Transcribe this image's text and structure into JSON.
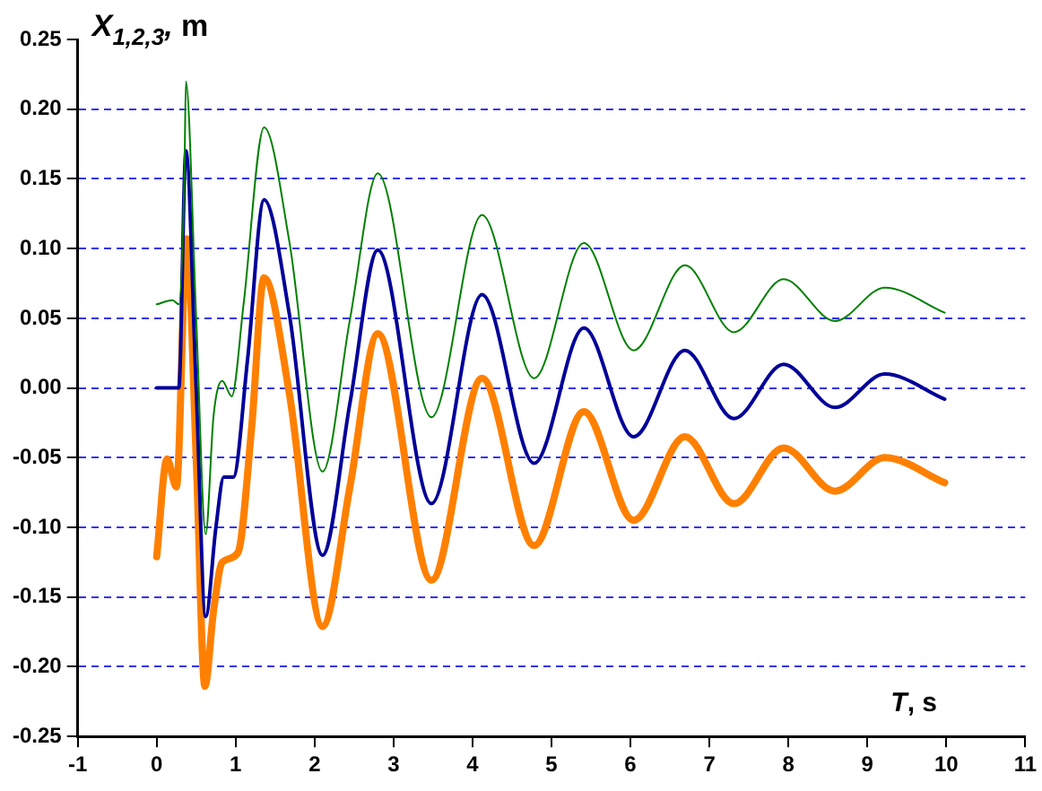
{
  "chart_data": {
    "type": "line",
    "xlabel": "T, s",
    "ylabel": "X$_{1,2,3}$, m",
    "xlim": [
      -1,
      11
    ],
    "xticks": [
      -1,
      0,
      1,
      2,
      3,
      4,
      5,
      6,
      7,
      8,
      9,
      10,
      11
    ],
    "ylim": [
      -0.25,
      0.25
    ],
    "yticks": [
      -0.25,
      {
        "value": -0.2,
        "label": "-0.20"
      },
      -0.15,
      {
        "value": -0.1,
        "label": "-0.10"
      },
      -0.05,
      {
        "value": 0,
        "label": "0.00"
      },
      0.05,
      {
        "value": 0.1,
        "label": "0.10"
      },
      0.15,
      {
        "value": 0.2,
        "label": "0.20"
      },
      0.25
    ],
    "grid": "y",
    "marker": "none",
    "line_style": "solid",
    "series": [
      {
        "color": "#008000",
        "x": [
          0,
          0.2,
          0.28,
          0.35,
          0.37,
          0.5,
          0.62,
          0.72,
          0.83,
          0.95,
          1.1,
          1.36,
          1.68,
          2.1,
          2.45,
          2.8,
          3.48,
          4.12,
          4.78,
          5.41,
          6.04,
          6.69,
          7.31,
          7.94,
          8.59,
          9.22,
          9.98
        ],
        "values": [
          0.06,
          0.063,
          0.06,
          0.15,
          0.22,
          0.05,
          -0.105,
          -0.02,
          0.005,
          -0.006,
          0.06,
          0.187,
          0.105,
          -0.06,
          0.05,
          0.154,
          -0.021,
          0.124,
          0.007,
          0.104,
          0.027,
          0.088,
          0.04,
          0.078,
          0.048,
          0.072,
          0.054
        ]
      },
      {
        "color": "#000099",
        "x": [
          0,
          0.28,
          0.37,
          0.5,
          0.62,
          0.75,
          0.85,
          0.97,
          1.15,
          1.36,
          1.68,
          2.1,
          2.45,
          2.8,
          3.48,
          4.12,
          4.78,
          5.41,
          6.04,
          6.69,
          7.31,
          7.94,
          8.59,
          9.22,
          9.98
        ],
        "values": [
          0,
          0,
          0.17,
          0.0,
          -0.164,
          -0.1,
          -0.064,
          -0.064,
          0.02,
          0.135,
          0.053,
          -0.12,
          -0.01,
          0.099,
          -0.083,
          0.067,
          -0.054,
          0.043,
          -0.035,
          0.027,
          -0.022,
          0.017,
          -0.014,
          0.01,
          -0.008
        ]
      },
      {
        "color": "#ff8000",
        "x": [
          0,
          0.13,
          0.25,
          0.38,
          0.5,
          0.61,
          0.72,
          0.83,
          1.03,
          1.2,
          1.36,
          1.68,
          2.1,
          2.45,
          2.8,
          3.48,
          4.12,
          4.78,
          5.41,
          6.04,
          6.69,
          7.31,
          7.94,
          8.59,
          9.22,
          9.98
        ],
        "values": [
          -0.121,
          -0.051,
          -0.071,
          0.107,
          -0.05,
          -0.214,
          -0.16,
          -0.125,
          -0.118,
          -0.03,
          0.079,
          -0.004,
          -0.171,
          -0.07,
          0.039,
          -0.138,
          0.007,
          -0.113,
          -0.017,
          -0.095,
          -0.035,
          -0.083,
          -0.043,
          -0.074,
          -0.05,
          -0.068
        ]
      }
    ]
  }
}
